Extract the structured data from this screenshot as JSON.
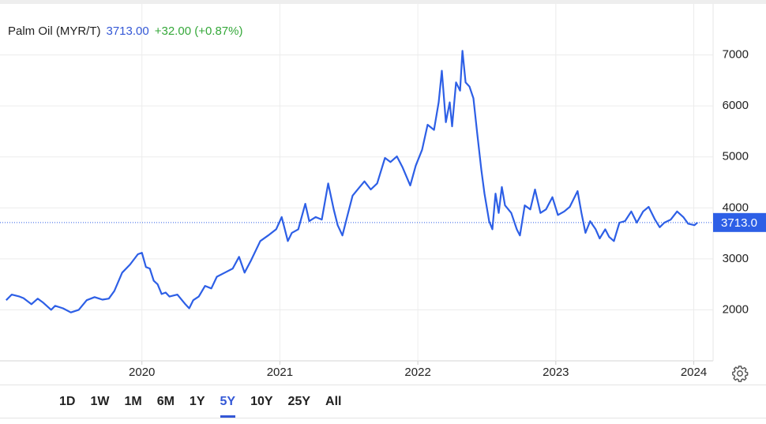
{
  "header": {
    "name": "Palm Oil (MYR/T)",
    "price": "3713.00",
    "change": "+32.00 (+0.87%)"
  },
  "chart_data": {
    "type": "line",
    "color": "#2d5fe6",
    "x": [
      2019.016,
      2019.056,
      2019.113,
      2019.142,
      2019.199,
      2019.245,
      2019.285,
      2019.342,
      2019.371,
      2019.428,
      2019.485,
      2019.542,
      2019.6,
      2019.657,
      2019.714,
      2019.76,
      2019.8,
      2019.857,
      2019.914,
      2019.971,
      2020.0,
      2020.029,
      2020.057,
      2020.086,
      2020.114,
      2020.143,
      2020.172,
      2020.2,
      2020.257,
      2020.315,
      2020.343,
      2020.372,
      2020.412,
      2020.458,
      2020.503,
      2020.543,
      2020.601,
      2020.658,
      2020.704,
      2020.744,
      2020.789,
      2020.858,
      2020.915,
      2020.973,
      2021.013,
      2021.058,
      2021.087,
      2021.133,
      2021.184,
      2021.213,
      2021.259,
      2021.304,
      2021.35,
      2021.39,
      2021.419,
      2021.453,
      2021.487,
      2021.527,
      2021.573,
      2021.613,
      2021.659,
      2021.705,
      2021.762,
      2021.802,
      2021.848,
      2021.888,
      2021.945,
      2021.985,
      2022.031,
      2022.071,
      2022.117,
      2022.151,
      2022.174,
      2022.203,
      2022.231,
      2022.248,
      2022.277,
      2022.306,
      2022.323,
      2022.346,
      2022.374,
      2022.403,
      2022.431,
      2022.46,
      2022.483,
      2022.517,
      2022.54,
      2022.563,
      2022.586,
      2022.609,
      2022.632,
      2022.677,
      2022.717,
      2022.74,
      2022.775,
      2022.815,
      2022.849,
      2022.889,
      2022.929,
      2022.975,
      2023.015,
      2023.061,
      2023.101,
      2023.158,
      2023.186,
      2023.215,
      2023.249,
      2023.289,
      2023.318,
      2023.358,
      2023.387,
      2023.421,
      2023.461,
      2023.501,
      2023.547,
      2023.587,
      2023.633,
      2023.673,
      2023.719,
      2023.753,
      2023.787,
      2023.833,
      2023.879,
      2023.924,
      2023.959,
      2024.005,
      2024.027
    ],
    "values": [
      2190,
      2300,
      2260,
      2230,
      2110,
      2220,
      2140,
      2000,
      2080,
      2030,
      1950,
      2000,
      2190,
      2250,
      2200,
      2220,
      2370,
      2730,
      2890,
      3090,
      3120,
      2840,
      2810,
      2570,
      2500,
      2310,
      2340,
      2260,
      2300,
      2110,
      2030,
      2190,
      2260,
      2470,
      2420,
      2650,
      2730,
      2810,
      3040,
      2730,
      2960,
      3350,
      3460,
      3580,
      3820,
      3350,
      3510,
      3580,
      4080,
      3740,
      3820,
      3770,
      4480,
      3970,
      3660,
      3460,
      3820,
      4240,
      4390,
      4520,
      4360,
      4480,
      4980,
      4900,
      5010,
      4800,
      4440,
      4830,
      5140,
      5630,
      5530,
      6070,
      6690,
      5680,
      6070,
      5600,
      6460,
      6300,
      7080,
      6460,
      6380,
      6150,
      5450,
      4750,
      4280,
      3740,
      3580,
      4280,
      3900,
      4410,
      4050,
      3900,
      3580,
      3460,
      4050,
      3970,
      4360,
      3900,
      3970,
      4210,
      3860,
      3930,
      4020,
      4330,
      3900,
      3510,
      3740,
      3580,
      3400,
      3580,
      3430,
      3350,
      3710,
      3740,
      3930,
      3710,
      3930,
      4020,
      3770,
      3620,
      3710,
      3770,
      3930,
      3820,
      3690,
      3660,
      3713
    ],
    "last_value": {
      "value": 3713,
      "label": "3713.0"
    },
    "xlim": [
      2019.0,
      2024.14
    ],
    "xticks": [
      2020,
      2021,
      2022,
      2023,
      2024
    ],
    "ylim": [
      1000,
      8000
    ],
    "yticks": [
      2000,
      3000,
      4000,
      5000,
      6000,
      7000
    ],
    "grid": true
  },
  "ranges": [
    "1D",
    "1W",
    "1M",
    "6M",
    "1Y",
    "5Y",
    "10Y",
    "25Y",
    "All"
  ]
}
